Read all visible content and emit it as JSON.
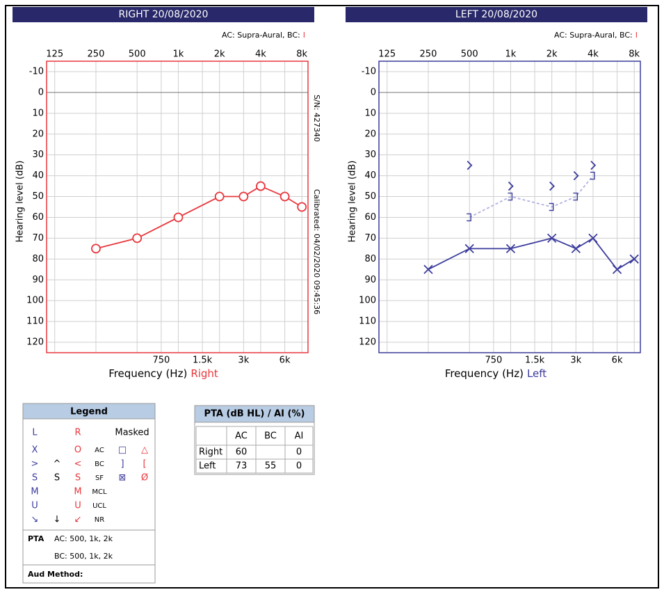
{
  "chart_data": [
    {
      "type": "line",
      "title": "RIGHT 20/08/2020",
      "transducer": "AC: Supra-Aural, BC:",
      "bc_marker": "I",
      "xlabel": "Frequency (Hz)",
      "side": "Right",
      "ylabel": "Hearing level (dB)",
      "notes": [
        "S/N: 427340",
        "Calibrated: 04/02/2020 09:45:36"
      ],
      "axis_color": "#e8373c",
      "xlog": true,
      "y_inverted": true,
      "grid": true,
      "xlim": [
        109,
        8870
      ],
      "xticks": [
        125,
        250,
        500,
        {
          "value": 1000,
          "label": "1k"
        },
        {
          "value": 2000,
          "label": "2k"
        },
        {
          "value": 4000,
          "label": "4k"
        },
        {
          "value": 8000,
          "label": "8k"
        }
      ],
      "xticks_minor": [
        750,
        {
          "value": 1500,
          "label": "1.5k"
        },
        {
          "value": 3000,
          "label": "3k"
        },
        {
          "value": 6000,
          "label": "6k"
        }
      ],
      "ylim": [
        -15,
        125
      ],
      "yticks": [
        -10,
        0,
        10,
        20,
        30,
        40,
        50,
        60,
        70,
        80,
        90,
        100,
        110,
        120
      ],
      "series": [
        {
          "marker": "circle",
          "line": "solid",
          "color": "#e8373c",
          "x": [
            250,
            500,
            1000,
            2000,
            3000,
            4000,
            6000,
            8000
          ],
          "values": [
            75,
            70,
            60,
            50,
            50,
            45,
            50,
            55
          ]
        }
      ]
    },
    {
      "type": "line",
      "title": "LEFT 20/08/2020",
      "transducer": "AC: Supra-Aural, BC:",
      "bc_marker": "I",
      "xlabel": "Frequency (Hz)",
      "side": "Left",
      "ylabel": "Hearing level (dB)",
      "axis_color": "#3b3b9c",
      "xlog": true,
      "y_inverted": true,
      "grid": true,
      "xlim": [
        109,
        8870
      ],
      "xticks": [
        125,
        250,
        500,
        {
          "value": 1000,
          "label": "1k"
        },
        {
          "value": 2000,
          "label": "2k"
        },
        {
          "value": 4000,
          "label": "4k"
        },
        {
          "value": 8000,
          "label": "8k"
        }
      ],
      "xticks_minor": [
        750,
        {
          "value": 1500,
          "label": "1.5k"
        },
        {
          "value": 3000,
          "label": "3k"
        },
        {
          "value": 6000,
          "label": "6k"
        }
      ],
      "ylim": [
        -15,
        125
      ],
      "yticks": [
        -10,
        0,
        10,
        20,
        30,
        40,
        50,
        60,
        70,
        80,
        90,
        100,
        110,
        120
      ],
      "series": [
        {
          "marker": "bracket",
          "line": "dashed",
          "color": "#b0b0e0",
          "x": [
            500,
            1000,
            2000,
            3000,
            4000
          ],
          "values": [
            60,
            50,
            55,
            50,
            40
          ]
        },
        {
          "marker": "gt",
          "line": "none",
          "color": "#3b3b9c",
          "x": [
            500,
            1000,
            2000,
            3000,
            4000
          ],
          "values": [
            35,
            45,
            45,
            40,
            35
          ]
        },
        {
          "marker": "x",
          "line": "solid",
          "color": "#3b3b9c",
          "x": [
            250,
            500,
            1000,
            2000,
            3000,
            4000,
            6000,
            8000
          ],
          "values": [
            85,
            75,
            75,
            70,
            75,
            70,
            85,
            80
          ]
        }
      ]
    }
  ],
  "legend": {
    "title": "Legend",
    "rows": [
      [
        "L",
        null,
        "R",
        null,
        "Masked",
        null
      ],
      [
        "X",
        null,
        "O",
        "AC",
        "□",
        "△"
      ],
      [
        ">",
        "^",
        "<",
        "BC",
        "]",
        "["
      ],
      [
        "S",
        "S",
        "S",
        "SF",
        "⊠",
        "Ø"
      ],
      [
        "M",
        null,
        "M",
        "MCL",
        null,
        null
      ],
      [
        "U",
        null,
        "U",
        "UCL",
        null,
        null
      ],
      [
        "↘",
        "↓",
        "↙",
        "NR",
        null,
        null
      ]
    ],
    "pta_label": "PTA",
    "pta_ac": "AC: 500, 1k, 2k",
    "pta_bc": "BC: 500, 1k, 2k",
    "method": "Aud Method:"
  },
  "pta_table": {
    "title": "PTA (dB HL) / AI (%)",
    "columns": [
      "AC",
      "BC",
      "AI"
    ],
    "rows": [
      {
        "label": "Right",
        "values": [
          60,
          null,
          0
        ]
      },
      {
        "label": "Left",
        "values": [
          73,
          55,
          0
        ]
      }
    ]
  }
}
